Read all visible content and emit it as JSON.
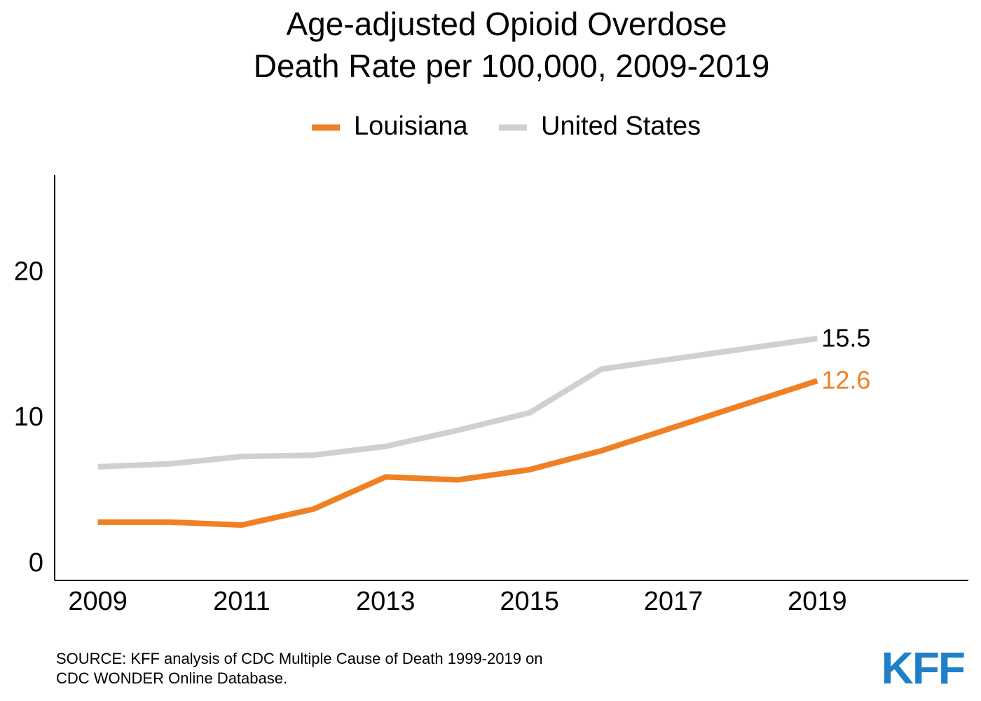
{
  "chart_data": {
    "type": "line",
    "title": [
      "Age-adjusted Opioid Overdose",
      "Death Rate per 100,000, 2009-2019"
    ],
    "x": [
      2009,
      2010,
      2011,
      2012,
      2013,
      2014,
      2015,
      2016,
      2017,
      2018,
      2019
    ],
    "series": [
      {
        "name": "Louisiana",
        "color": "#f08024",
        "values": [
          2.9,
          2.9,
          2.7,
          3.8,
          6.0,
          5.8,
          6.5,
          7.8,
          9.4,
          11.0,
          12.6
        ]
      },
      {
        "name": "United States",
        "color": "#d0d0d0",
        "values": [
          6.7,
          6.9,
          7.4,
          7.5,
          8.1,
          9.2,
          10.4,
          13.4,
          14.1,
          14.8,
          15.5
        ]
      }
    ],
    "xlim": [
      2008.4,
      2021.1
    ],
    "xticks": [
      2009,
      2011,
      2013,
      2015,
      2017,
      2019
    ],
    "ylim": [
      -1.1,
      26.7
    ],
    "yticks": [
      0,
      10,
      20
    ],
    "end_label_colors": [
      "#f08024",
      "#000000"
    ],
    "source": [
      "SOURCE: KFF analysis of CDC Multiple Cause of Death 1999-2019 on",
      "CDC WONDER Online Database."
    ],
    "logo": "KFF"
  }
}
